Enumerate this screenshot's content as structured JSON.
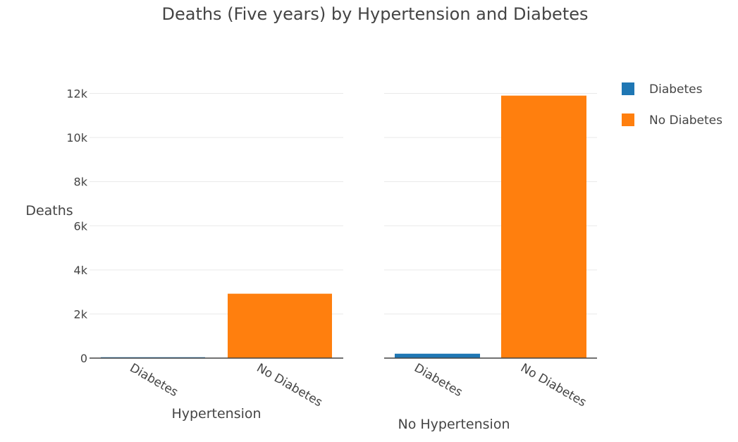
{
  "chart_data": {
    "type": "bar",
    "title": "Deaths (Five years) by Hypertension and Diabetes",
    "ylabel": "Deaths",
    "ylim": [
      0,
      12400
    ],
    "yticks": [
      0,
      2000,
      4000,
      6000,
      8000,
      10000,
      12000
    ],
    "ytick_labels": [
      "0",
      "2k",
      "4k",
      "6k",
      "8k",
      "10k",
      "12k"
    ],
    "grid": true,
    "legend_position": "top-right",
    "legend": [
      {
        "label": "Diabetes",
        "color": "#1f77b4"
      },
      {
        "label": "No Diabetes",
        "color": "#ff7f0e"
      }
    ],
    "subplots": [
      {
        "xlabel": "Hypertension",
        "categories": [
          "Diabetes",
          "No Diabetes"
        ],
        "values": [
          40,
          2920
        ],
        "colors": [
          "#1f77b4",
          "#ff7f0e"
        ]
      },
      {
        "xlabel": "No Hypertension",
        "categories": [
          "Diabetes",
          "No Diabetes"
        ],
        "values": [
          200,
          11900
        ],
        "colors": [
          "#1f77b4",
          "#ff7f0e"
        ]
      }
    ]
  }
}
